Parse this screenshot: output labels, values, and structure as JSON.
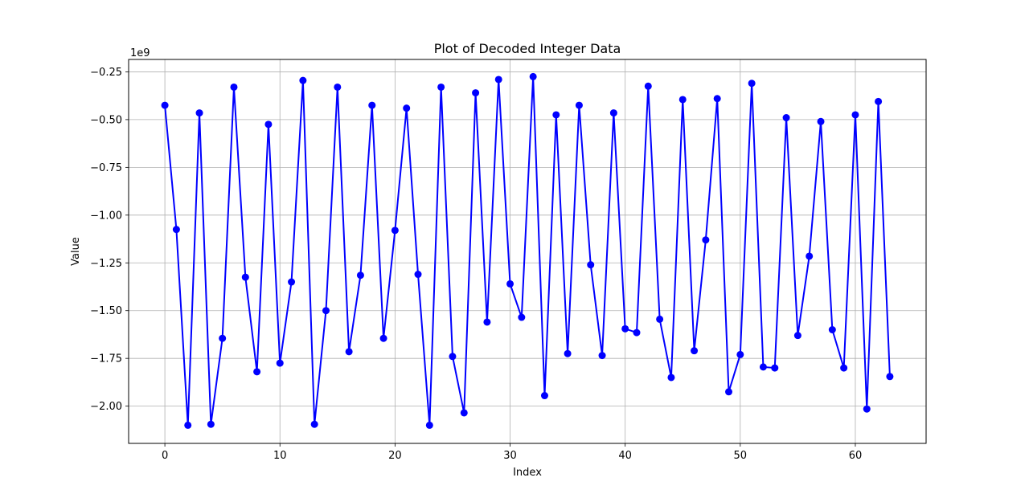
{
  "chart_data": {
    "type": "line",
    "title": "Plot of Decoded Integer Data",
    "xlabel": "Index",
    "ylabel": "Value",
    "offset_label": "1e9",
    "xlim": [
      -3.15,
      66.15
    ],
    "ylim": [
      -2.2,
      -2.0,
      -0.75,
      -0.5
    ],
    "y_range": [
      -2.195,
      -0.185
    ],
    "xticks": [
      0,
      10,
      20,
      30,
      40,
      50,
      60
    ],
    "xtick_labels": [
      "0",
      "10",
      "20",
      "30",
      "40",
      "50",
      "60"
    ],
    "yticks": [
      -2.0,
      -1.75,
      -1.5,
      -1.25,
      -1.0,
      -0.75,
      -0.5,
      -0.25
    ],
    "ytick_labels": [
      "−2.00",
      "−1.75",
      "−1.50",
      "−1.25",
      "−1.00",
      "−0.75",
      "−0.50",
      "−0.25"
    ],
    "grid": true,
    "line_color": "#0000ff",
    "series": [
      {
        "x": [
          0,
          1,
          2,
          3,
          4,
          5,
          6,
          7,
          8,
          9,
          10,
          11,
          12,
          13,
          14,
          15,
          16,
          17,
          18,
          19,
          20,
          21,
          22,
          23,
          24,
          25,
          26,
          27,
          28,
          29,
          30,
          31,
          32,
          33,
          34,
          35,
          36,
          37,
          38,
          39,
          40,
          41,
          42,
          43,
          44,
          45,
          46,
          47,
          48,
          49,
          50,
          51,
          52,
          53,
          54,
          55,
          56,
          57,
          58,
          59,
          60,
          61,
          62,
          63
        ],
        "values": [
          -0.425,
          -1.075,
          -2.1,
          -0.465,
          -2.095,
          -1.645,
          -0.33,
          -1.325,
          -1.82,
          -0.525,
          -1.775,
          -1.35,
          -0.295,
          -2.095,
          -1.5,
          -0.33,
          -1.715,
          -1.315,
          -0.425,
          -1.645,
          -1.08,
          -0.44,
          -1.31,
          -2.1,
          -0.33,
          -1.74,
          -2.035,
          -0.36,
          -1.56,
          -0.29,
          -1.36,
          -1.535,
          -0.275,
          -1.945,
          -0.475,
          -1.725,
          -0.425,
          -1.26,
          -1.735,
          -0.465,
          -1.595,
          -1.615,
          -0.325,
          -1.545,
          -1.85,
          -0.395,
          -1.71,
          -1.13,
          -0.39,
          -1.925,
          -1.73,
          -0.31,
          -1.795,
          -1.8,
          -0.49,
          -1.63,
          -1.215,
          -0.51,
          -1.6,
          -1.8,
          -0.475,
          -2.015,
          -0.405,
          -1.845
        ]
      }
    ]
  }
}
